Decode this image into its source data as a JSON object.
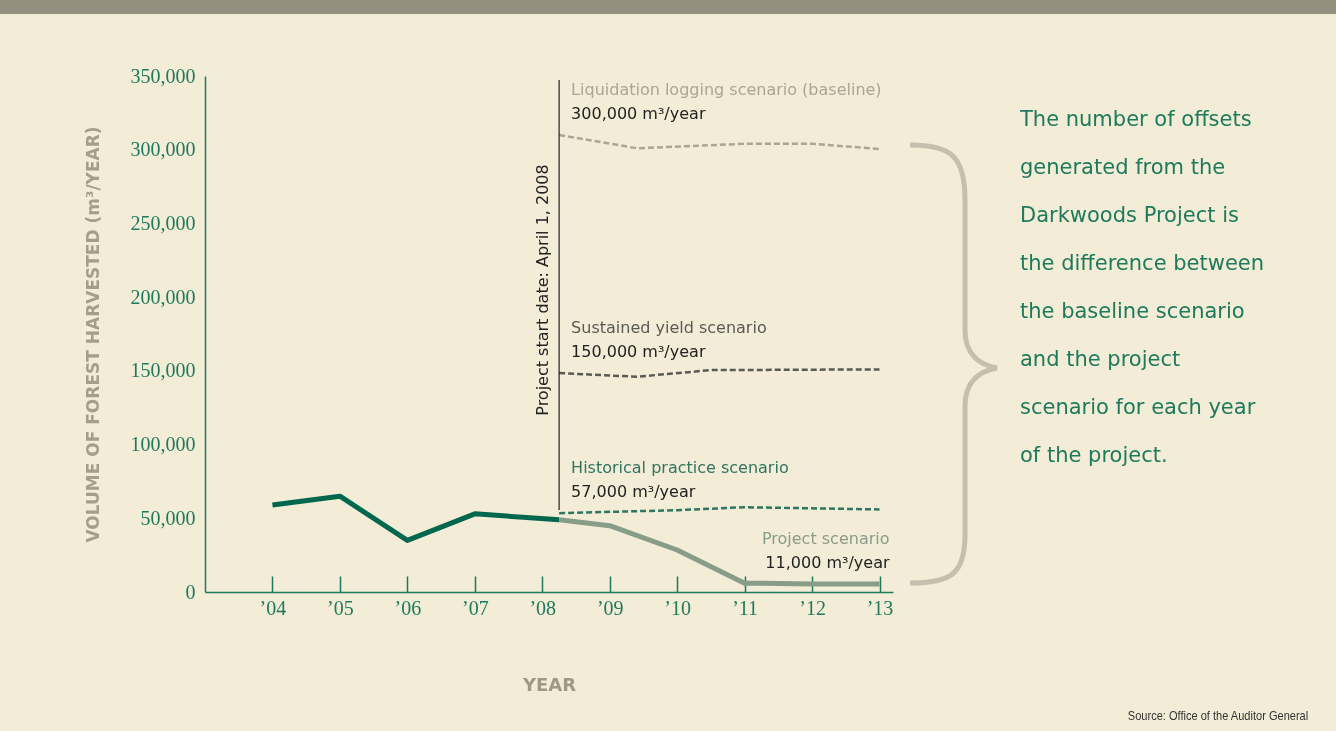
{
  "chart_data": {
    "type": "line",
    "xlabel": "YEAR",
    "ylabel": "VOLUME OF FOREST HARVESTED (m³/YEAR)",
    "xlim": [
      2003,
      2013.2
    ],
    "xticks": [
      {
        "value": 2004,
        "label": "’04"
      },
      {
        "value": 2005,
        "label": "’05"
      },
      {
        "value": 2006,
        "label": "’06"
      },
      {
        "value": 2007,
        "label": "’07"
      },
      {
        "value": 2008,
        "label": "’08"
      },
      {
        "value": 2009,
        "label": "’09"
      },
      {
        "value": 2010,
        "label": "’10"
      },
      {
        "value": 2011,
        "label": "’11"
      },
      {
        "value": 2012,
        "label": "’12"
      },
      {
        "value": 2013,
        "label": "’13"
      }
    ],
    "ylim": [
      0,
      350000
    ],
    "yticks": [
      {
        "value": 0,
        "label": "0"
      },
      {
        "value": 50000,
        "label": "50,000"
      },
      {
        "value": 100000,
        "label": "100,000"
      },
      {
        "value": 150000,
        "label": "150,000"
      },
      {
        "value": 200000,
        "label": "200,000"
      },
      {
        "value": 250000,
        "label": "250,000"
      },
      {
        "value": 300000,
        "label": "300,000"
      },
      {
        "value": 350000,
        "label": "350,000"
      }
    ],
    "grid": false,
    "marker": "none",
    "series": [
      {
        "color": "#00674f",
        "line_style": "solid",
        "x": [
          2004,
          2005,
          2006,
          2007,
          2008.25
        ],
        "values": [
          59000,
          65000,
          35000,
          53000,
          49000
        ]
      },
      {
        "name": "Project scenario",
        "color": "#889d88",
        "line_style": "solid",
        "x": [
          2008.25,
          2009,
          2010,
          2011,
          2012,
          2013
        ],
        "values": [
          49000,
          45000,
          28500,
          6000,
          5500,
          5500
        ]
      },
      {
        "name": "Liquidation logging scenario (baseline)",
        "color": "#aaa696",
        "line_style": "dashed",
        "x": [
          2008.25,
          2009.4,
          2011,
          2012,
          2013
        ],
        "values": [
          310000,
          301000,
          304000,
          304000,
          300500
        ]
      },
      {
        "name": "Sustained yield scenario",
        "color": "#5a5a55",
        "line_style": "dashed",
        "x": [
          2008.25,
          2009.4,
          2010.5,
          2013
        ],
        "values": [
          148500,
          146000,
          150500,
          151000
        ]
      },
      {
        "name": "Historical practice scenario",
        "color": "#2f7562",
        "line_style": "dashed",
        "x": [
          2008.25,
          2010,
          2011,
          2013
        ],
        "values": [
          53500,
          55500,
          57500,
          56000
        ]
      }
    ],
    "ref_lines": [
      {
        "axis": "x",
        "value": 2008.25,
        "label": "Project start date: April 1, 2008",
        "color": "#222222"
      }
    ],
    "annotations": [
      "The number of offsets generated from the Darkwoods Project is the difference between the baseline scenario and the project scenario for each year of the project.",
      "Source: Office of the Auditor General",
      "11,000 m³/year",
      "300,000 m³/year",
      "150,000 m³/year",
      "57,000 m³/year"
    ]
  }
}
